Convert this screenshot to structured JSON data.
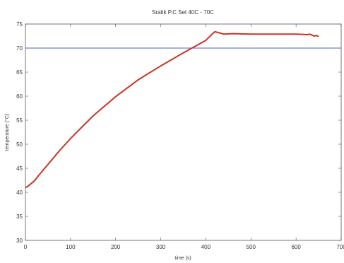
{
  "chart_data": {
    "type": "line",
    "title": "Sratik P.C Set 40C - 70C",
    "xlabel": "time (s)",
    "ylabel": "temperature (°C)",
    "xlim": [
      0,
      700
    ],
    "ylim": [
      30,
      75
    ],
    "xticks": [
      0,
      100,
      200,
      300,
      400,
      500,
      600,
      700
    ],
    "yticks": [
      30,
      35,
      40,
      45,
      50,
      55,
      60,
      65,
      70,
      75
    ],
    "grid": false,
    "series": [
      {
        "color": "#4a5fc1",
        "x": [
          0,
          700
        ],
        "y": [
          70,
          70
        ]
      },
      {
        "color": "#cc3322",
        "x": [
          0,
          5,
          10,
          20,
          30,
          50,
          75,
          100,
          150,
          200,
          250,
          300,
          350,
          400,
          415,
          420,
          425,
          440,
          460,
          500,
          550,
          600,
          625,
          630,
          635,
          640,
          645,
          650
        ],
        "y": [
          41.0,
          41.2,
          41.6,
          42.4,
          43.6,
          45.8,
          48.6,
          51.2,
          55.9,
          59.9,
          63.4,
          66.3,
          69.0,
          71.6,
          73.0,
          73.4,
          73.3,
          72.9,
          73.0,
          72.9,
          72.9,
          72.9,
          72.8,
          72.9,
          72.7,
          72.5,
          72.6,
          72.4
        ]
      }
    ]
  }
}
